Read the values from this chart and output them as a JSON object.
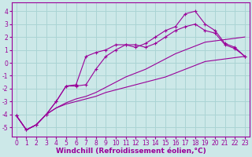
{
  "background_color": "#cce8e8",
  "grid_color": "#aad4d4",
  "line_color": "#990099",
  "marker": "+",
  "xlabel": "Windchill (Refroidissement éolien,°C)",
  "xlabel_fontsize": 6.5,
  "tick_fontsize": 5.5,
  "xlim": [
    -0.5,
    23.5
  ],
  "ylim": [
    -5.7,
    4.7
  ],
  "yticks": [
    -5,
    -4,
    -3,
    -2,
    -1,
    0,
    1,
    2,
    3,
    4
  ],
  "xticks": [
    0,
    1,
    2,
    3,
    4,
    5,
    6,
    7,
    8,
    9,
    10,
    11,
    12,
    13,
    14,
    15,
    16,
    17,
    18,
    19,
    20,
    21,
    22,
    23
  ],
  "lines": [
    {
      "x": [
        0,
        1,
        2,
        3,
        4,
        5,
        6,
        7,
        8,
        9,
        10,
        11,
        12,
        13,
        14,
        15,
        16,
        17,
        18,
        19,
        20,
        21,
        22,
        23
      ],
      "y": [
        -4.1,
        -5.2,
        -4.8,
        -4.0,
        -3.5,
        -3.2,
        -3.0,
        -2.8,
        -2.6,
        -2.3,
        -2.1,
        -1.9,
        -1.7,
        -1.5,
        -1.3,
        -1.1,
        -0.8,
        -0.5,
        -0.2,
        0.1,
        0.2,
        0.3,
        0.4,
        0.5
      ],
      "has_markers": false
    },
    {
      "x": [
        0,
        1,
        2,
        3,
        4,
        5,
        6,
        7,
        8,
        9,
        10,
        11,
        12,
        13,
        14,
        15,
        16,
        17,
        18,
        19,
        20,
        21,
        22,
        23
      ],
      "y": [
        -4.1,
        -5.2,
        -4.8,
        -4.0,
        -3.5,
        -3.1,
        -2.8,
        -2.6,
        -2.3,
        -1.9,
        -1.5,
        -1.1,
        -0.8,
        -0.5,
        -0.1,
        0.3,
        0.7,
        1.0,
        1.3,
        1.6,
        1.7,
        1.8,
        1.9,
        2.0
      ],
      "has_markers": false
    },
    {
      "x": [
        0,
        1,
        2,
        3,
        4,
        5,
        6,
        7,
        8,
        9,
        10,
        11,
        12,
        13,
        14,
        15,
        16,
        17,
        18,
        19,
        20,
        21,
        22,
        23
      ],
      "y": [
        -4.1,
        -5.2,
        -4.8,
        -4.0,
        -3.0,
        -1.8,
        -1.8,
        -1.7,
        -0.5,
        0.5,
        1.0,
        1.4,
        1.4,
        1.2,
        1.5,
        2.0,
        2.5,
        2.8,
        3.0,
        2.5,
        2.3,
        1.4,
        1.1,
        0.5
      ],
      "has_markers": true
    },
    {
      "x": [
        0,
        1,
        2,
        3,
        4,
        5,
        6,
        7,
        8,
        9,
        10,
        11,
        12,
        13,
        14,
        15,
        16,
        17,
        18,
        19,
        20,
        21,
        22,
        23
      ],
      "y": [
        -4.1,
        -5.2,
        -4.8,
        -4.0,
        -3.0,
        -1.8,
        -1.7,
        0.5,
        0.8,
        1.0,
        1.4,
        1.4,
        1.2,
        1.5,
        2.0,
        2.5,
        2.8,
        3.8,
        4.0,
        3.0,
        2.5,
        1.5,
        1.2,
        0.5
      ],
      "has_markers": true
    }
  ]
}
